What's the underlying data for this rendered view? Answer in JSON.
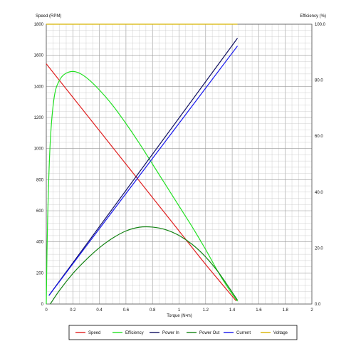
{
  "chart_data": {
    "type": "line",
    "left_axis_label": "Speed (RPM)",
    "right_axis_label": "Efficiency (%)",
    "xlabel": "Torque (N•m)",
    "xlim": [
      0,
      2
    ],
    "ylim_left": [
      0,
      1800
    ],
    "ylim_right": [
      0,
      100
    ],
    "grid": true,
    "legend_position": "bottom",
    "x_ticks": [
      "0",
      "0.2",
      "0.4",
      "0.6",
      "0.8",
      "1",
      "1.2",
      "1.4",
      "1.6",
      "1.8",
      "2"
    ],
    "y_left_ticks": [
      "0",
      "200",
      "400",
      "600",
      "800",
      "1000",
      "1200",
      "1400",
      "1600",
      "1800"
    ],
    "y_right_ticks": [
      "0.0",
      "20.0",
      "40.0",
      "60.0",
      "80.0",
      "100.0"
    ],
    "series": [
      {
        "name": "Speed",
        "color": "#e02020",
        "axis": "left",
        "x": [
          0,
          0.2,
          0.4,
          0.6,
          0.8,
          1.0,
          1.2,
          1.43
        ],
        "y": [
          1545,
          1330,
          1115,
          900,
          685,
          470,
          255,
          20
        ]
      },
      {
        "name": "Efficiency",
        "color": "#22e022",
        "axis": "right",
        "x": [
          0.0,
          0.01,
          0.03,
          0.06,
          0.1,
          0.15,
          0.22,
          0.3,
          0.4,
          0.5,
          0.6,
          0.7,
          0.8,
          0.9,
          1.0,
          1.1,
          1.2,
          1.3,
          1.38,
          1.44
        ],
        "y": [
          0,
          30,
          58,
          74,
          80,
          82.5,
          83,
          81,
          76.5,
          71,
          64.5,
          57.5,
          50,
          42.5,
          35,
          27.5,
          19.5,
          11,
          5,
          1
        ]
      },
      {
        "name": "Power In",
        "color": "#101060",
        "axis": "left",
        "x": [
          0.02,
          1.44
        ],
        "y": [
          55,
          1710
        ]
      },
      {
        "name": "Power Out",
        "color": "#128212",
        "axis": "left",
        "x": [
          0.03,
          0.1,
          0.2,
          0.3,
          0.4,
          0.5,
          0.6,
          0.7,
          0.8,
          0.9,
          1.0,
          1.1,
          1.2,
          1.3,
          1.44
        ],
        "y": [
          0,
          88,
          196,
          285,
          362,
          424,
          470,
          494,
          495,
          478,
          441,
          383,
          303,
          200,
          25
        ]
      },
      {
        "name": "Current",
        "color": "#1515ee",
        "axis": "left",
        "x": [
          0.02,
          1.44
        ],
        "y": [
          55,
          1660
        ]
      },
      {
        "name": "Voltage",
        "color": "#d8b400",
        "axis": "left",
        "x": [
          0,
          1.44
        ],
        "y": [
          1800,
          1800
        ]
      }
    ]
  }
}
